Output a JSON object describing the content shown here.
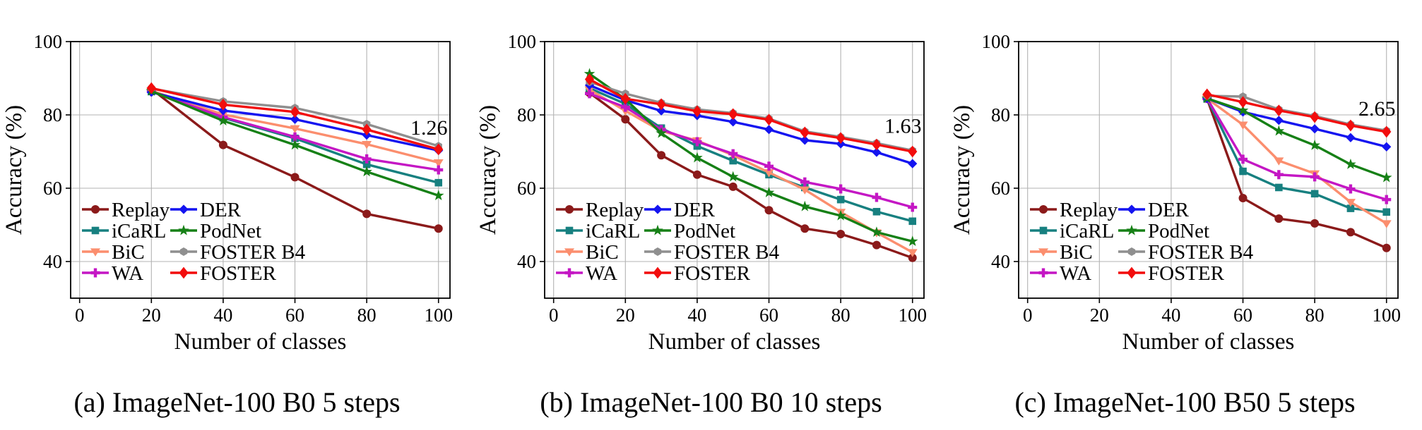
{
  "figure": {
    "background": "#ffffff",
    "grid_color": "#b3b3b3",
    "axis_color": "#000000",
    "methods": [
      {
        "name": "Replay",
        "color": "#8B1A1A",
        "marker": "circle"
      },
      {
        "name": "iCaRL",
        "color": "#178080",
        "marker": "square"
      },
      {
        "name": "BiC",
        "color": "#FB8E6E",
        "marker": "triangle-down"
      },
      {
        "name": "WA",
        "color": "#C417C4",
        "marker": "plus"
      },
      {
        "name": "DER",
        "color": "#1414F0",
        "marker": "diamond"
      },
      {
        "name": "PodNet",
        "color": "#168016",
        "marker": "star"
      },
      {
        "name": "FOSTER B4",
        "color": "#8F8F8F",
        "marker": "hexagon"
      },
      {
        "name": "FOSTER",
        "color": "#F20D0D",
        "marker": "diamond-large"
      }
    ],
    "legend": {
      "position": "lower-left",
      "columns": [
        [
          "Replay",
          "iCaRL",
          "BiC",
          "WA"
        ],
        [
          "DER",
          "PodNet",
          "FOSTER B4",
          "FOSTER"
        ]
      ]
    }
  },
  "chart_data": [
    {
      "type": "line",
      "caption": "(a) ImageNet-100 B0 5 steps",
      "xlabel": "Number of classes",
      "ylabel": "Accuracy (%)",
      "x_ticks": [
        0,
        20,
        40,
        60,
        80,
        100
      ],
      "y_ticks": [
        40,
        60,
        80,
        100
      ],
      "xlim": [
        -2.5,
        103.2
      ],
      "ylim": [
        30,
        100
      ],
      "grid": true,
      "annotation": {
        "text": "1.26",
        "x": 102.5,
        "y": 76.5
      },
      "x": [
        20,
        40,
        60,
        80,
        100
      ],
      "series": [
        {
          "name": "Replay",
          "values": [
            87.1,
            71.8,
            63.0,
            53.0,
            49.0
          ]
        },
        {
          "name": "iCaRL",
          "values": [
            86.4,
            79.2,
            73.6,
            66.5,
            61.5
          ]
        },
        {
          "name": "BiC",
          "values": [
            86.6,
            80.1,
            76.3,
            72.0,
            67.0
          ]
        },
        {
          "name": "WA",
          "values": [
            86.4,
            79.4,
            74.0,
            68.0,
            65.0
          ]
        },
        {
          "name": "DER",
          "values": [
            86.2,
            81.2,
            78.8,
            74.5,
            70.3
          ]
        },
        {
          "name": "PodNet",
          "values": [
            86.5,
            78.4,
            71.8,
            64.5,
            58.0
          ]
        },
        {
          "name": "FOSTER B4",
          "values": [
            87.2,
            83.7,
            81.9,
            77.5,
            71.5
          ]
        },
        {
          "name": "FOSTER",
          "values": [
            87.3,
            82.8,
            80.8,
            76.0,
            70.6
          ]
        }
      ]
    },
    {
      "type": "line",
      "caption": "(b) ImageNet-100 B0 10 steps",
      "xlabel": "Number of classes",
      "ylabel": "Accuracy (%)",
      "x_ticks": [
        0,
        20,
        40,
        60,
        80,
        100
      ],
      "y_ticks": [
        40,
        60,
        80,
        100
      ],
      "xlim": [
        -2.5,
        103.2
      ],
      "ylim": [
        30,
        100
      ],
      "grid": true,
      "annotation": {
        "text": "1.63",
        "x": 102.5,
        "y": 77.0
      },
      "x": [
        10,
        20,
        30,
        40,
        50,
        60,
        70,
        80,
        90,
        100
      ],
      "series": [
        {
          "name": "Replay",
          "values": [
            86.0,
            78.8,
            69.0,
            63.7,
            60.4,
            54.0,
            49.0,
            47.5,
            44.5,
            41.0
          ]
        },
        {
          "name": "iCaRL",
          "values": [
            87.3,
            83.0,
            76.4,
            71.5,
            67.5,
            63.7,
            60.2,
            56.9,
            53.6,
            51.0
          ]
        },
        {
          "name": "BiC",
          "values": [
            86.9,
            81.1,
            75.6,
            73.0,
            69.0,
            64.3,
            59.6,
            53.5,
            47.9,
            42.5
          ]
        },
        {
          "name": "WA",
          "values": [
            85.8,
            82.1,
            76.0,
            72.7,
            69.4,
            66.0,
            61.7,
            59.8,
            57.5,
            54.8
          ]
        },
        {
          "name": "DER",
          "values": [
            88.1,
            84.0,
            81.1,
            79.8,
            78.1,
            76.0,
            73.1,
            72.1,
            69.8,
            66.7
          ]
        },
        {
          "name": "PodNet",
          "values": [
            91.2,
            84.3,
            75.0,
            68.3,
            63.1,
            58.8,
            55.0,
            52.5,
            48.0,
            45.5
          ]
        },
        {
          "name": "FOSTER B4",
          "values": [
            89.0,
            85.8,
            83.3,
            81.5,
            80.5,
            79.0,
            75.5,
            74.0,
            72.3,
            70.3
          ]
        },
        {
          "name": "FOSTER",
          "values": [
            89.7,
            84.4,
            82.9,
            81.0,
            80.2,
            78.7,
            75.2,
            73.7,
            71.9,
            70.0
          ]
        }
      ]
    },
    {
      "type": "line",
      "caption": "(c) ImageNet-100 B50 5 steps",
      "xlabel": "Number of classes",
      "ylabel": "Accuracy (%)",
      "x_ticks": [
        0,
        20,
        40,
        60,
        80,
        100
      ],
      "y_ticks": [
        40,
        60,
        80,
        100
      ],
      "xlim": [
        -2.5,
        103.2
      ],
      "ylim": [
        30,
        100
      ],
      "grid": true,
      "annotation": {
        "text": "2.65",
        "x": 102.5,
        "y": 81.7
      },
      "x": [
        50,
        60,
        70,
        80,
        90,
        100
      ],
      "series": [
        {
          "name": "Replay",
          "values": [
            84.4,
            57.3,
            51.7,
            50.4,
            48.0,
            43.7
          ]
        },
        {
          "name": "iCaRL",
          "values": [
            84.4,
            64.6,
            60.2,
            58.5,
            54.5,
            53.5
          ]
        },
        {
          "name": "BiC",
          "values": [
            84.5,
            77.3,
            67.5,
            64.0,
            56.2,
            50.4
          ]
        },
        {
          "name": "WA",
          "values": [
            84.5,
            67.9,
            63.7,
            63.1,
            59.8,
            56.9
          ]
        },
        {
          "name": "DER",
          "values": [
            84.5,
            80.8,
            78.5,
            76.2,
            73.8,
            71.3
          ]
        },
        {
          "name": "PodNet",
          "values": [
            84.5,
            81.2,
            75.6,
            71.7,
            66.5,
            62.9
          ]
        },
        {
          "name": "FOSTER B4",
          "values": [
            85.2,
            85.0,
            81.5,
            79.7,
            77.4,
            75.7
          ]
        },
        {
          "name": "FOSTER",
          "values": [
            85.6,
            83.5,
            81.2,
            79.4,
            77.1,
            75.4
          ]
        }
      ]
    }
  ]
}
